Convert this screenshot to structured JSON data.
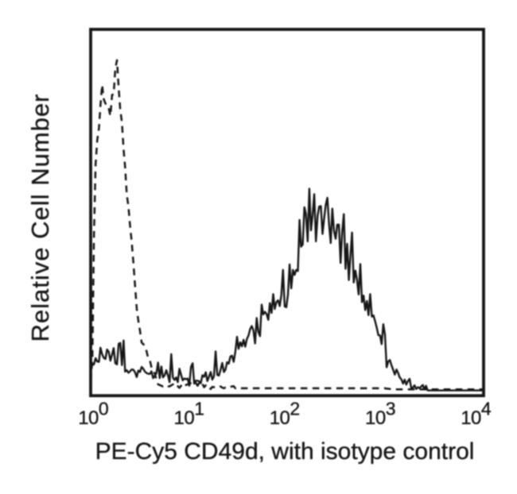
{
  "figure": {
    "background": "#ffffff",
    "ink": "#161616"
  },
  "chart_data": {
    "type": "line",
    "subtype": "flow-cytometry-histogram",
    "title": "",
    "xlabel": "PE-Cy5 CD49d, with isotype control",
    "ylabel": "Relative Cell Number",
    "x_scale": "log10",
    "x_range_log10": [
      0,
      4
    ],
    "ylim": [
      0,
      1
    ],
    "grid": false,
    "legend": "none",
    "x_ticks": [
      {
        "base": "10",
        "exp": "0"
      },
      {
        "base": "10",
        "exp": "1"
      },
      {
        "base": "10",
        "exp": "2"
      },
      {
        "base": "10",
        "exp": "3"
      },
      {
        "base": "10",
        "exp": "4"
      }
    ],
    "x_log10": [
      0.0,
      0.017,
      0.033,
      0.05,
      0.067,
      0.084,
      0.1,
      0.117,
      0.134,
      0.151,
      0.167,
      0.184,
      0.201,
      0.218,
      0.234,
      0.251,
      0.268,
      0.285,
      0.301,
      0.318,
      0.335,
      0.351,
      0.368,
      0.385,
      0.402,
      0.418,
      0.435,
      0.452,
      0.469,
      0.485,
      0.502,
      0.519,
      0.536,
      0.552,
      0.569,
      0.586,
      0.603,
      0.619,
      0.636,
      0.653,
      0.669,
      0.686,
      0.703,
      0.72,
      0.736,
      0.753,
      0.77,
      0.787,
      0.803,
      0.82,
      0.837,
      0.854,
      0.87,
      0.887,
      0.904,
      0.921,
      0.937,
      0.954,
      0.971,
      0.987,
      1.004,
      1.021,
      1.038,
      1.054,
      1.071,
      1.088,
      1.105,
      1.121,
      1.138,
      1.155,
      1.172,
      1.188,
      1.205,
      1.222,
      1.238,
      1.255,
      1.272,
      1.289,
      1.305,
      1.322,
      1.339,
      1.356,
      1.372,
      1.389,
      1.406,
      1.423,
      1.439,
      1.456,
      1.473,
      1.49,
      1.506,
      1.523,
      1.54,
      1.556,
      1.573,
      1.59,
      1.607,
      1.623,
      1.64,
      1.657,
      1.674,
      1.69,
      1.707,
      1.724,
      1.741,
      1.757,
      1.774,
      1.791,
      1.808,
      1.824,
      1.841,
      1.858,
      1.874,
      1.891,
      1.908,
      1.925,
      1.941,
      1.958,
      1.975,
      1.992,
      2.008,
      2.025,
      2.042,
      2.059,
      2.075,
      2.092,
      2.109,
      2.126,
      2.142,
      2.159,
      2.176,
      2.192,
      2.209,
      2.226,
      2.243,
      2.259,
      2.276,
      2.293,
      2.31,
      2.326,
      2.343,
      2.36,
      2.377,
      2.393,
      2.41,
      2.427,
      2.444,
      2.46,
      2.477,
      2.494,
      2.51,
      2.527,
      2.544,
      2.561,
      2.577,
      2.594,
      2.611,
      2.628,
      2.644,
      2.661,
      2.678,
      2.695,
      2.711,
      2.728,
      2.745,
      2.762,
      2.778,
      2.795,
      2.812,
      2.828,
      2.845,
      2.862,
      2.879,
      2.895,
      2.912,
      2.929,
      2.946,
      2.962,
      2.979,
      2.996,
      3.013,
      3.029,
      3.046,
      3.063,
      3.079,
      3.096,
      3.113,
      3.13,
      3.146,
      3.163,
      3.18,
      3.197,
      3.213,
      3.23,
      3.247,
      3.264,
      3.28,
      3.297,
      3.314,
      3.331,
      3.347,
      3.364,
      3.381,
      3.397,
      3.414,
      3.431,
      3.448,
      3.464,
      3.481,
      3.498,
      3.515,
      3.531,
      3.548,
      3.565,
      3.582,
      3.598,
      3.615,
      3.632,
      3.649,
      3.665,
      3.682,
      3.699,
      3.715,
      3.732,
      3.749,
      3.766,
      3.782,
      3.799,
      3.816,
      3.833,
      3.849,
      3.866,
      3.883,
      3.9,
      3.916,
      3.933,
      3.95,
      3.967,
      3.983,
      4.0
    ],
    "series": [
      {
        "name": "PE-Cy5 CD49d",
        "line_style": "solid",
        "draw_style": "linear",
        "color": "#161616",
        "y": [
          0.062,
          0.074,
          0.075,
          0.092,
          0.083,
          0.082,
          0.121,
          0.103,
          0.093,
          0.09,
          0.116,
          0.11,
          0.085,
          0.102,
          0.12,
          0.078,
          0.075,
          0.132,
          0.134,
          0.073,
          0.141,
          0.055,
          0.059,
          0.052,
          0.056,
          0.061,
          0.06,
          0.053,
          0.04,
          0.058,
          0.054,
          0.068,
          0.063,
          0.055,
          0.051,
          0.049,
          0.049,
          0.056,
          0.037,
          0.044,
          0.05,
          0.08,
          0.037,
          0.069,
          0.039,
          0.045,
          0.059,
          0.044,
          0.026,
          0.103,
          0.038,
          0.032,
          0.039,
          0.026,
          0.063,
          0.046,
          0.031,
          0.036,
          0.034,
          0.036,
          0.016,
          0.068,
          0.078,
          0.022,
          0.03,
          0.03,
          0.028,
          0.023,
          0.045,
          0.041,
          0.053,
          0.029,
          0.041,
          0.054,
          0.033,
          0.042,
          0.111,
          0.046,
          0.044,
          0.06,
          0.079,
          0.054,
          0.06,
          0.081,
          0.077,
          0.097,
          0.099,
          0.082,
          0.11,
          0.151,
          0.118,
          0.136,
          0.125,
          0.143,
          0.124,
          0.145,
          0.155,
          0.172,
          0.181,
          0.169,
          0.133,
          0.203,
          0.165,
          0.153,
          0.24,
          0.213,
          0.22,
          0.214,
          0.198,
          0.244,
          0.217,
          0.269,
          0.228,
          0.247,
          0.252,
          0.236,
          0.266,
          0.336,
          0.235,
          0.233,
          0.267,
          0.351,
          0.285,
          0.336,
          0.322,
          0.336,
          0.333,
          0.474,
          0.4,
          0.406,
          0.509,
          0.49,
          0.415,
          0.56,
          0.445,
          0.487,
          0.545,
          0.415,
          0.485,
          0.511,
          0.512,
          0.435,
          0.479,
          0.515,
          0.535,
          0.462,
          0.41,
          0.505,
          0.444,
          0.422,
          0.461,
          0.461,
          0.355,
          0.443,
          0.49,
          0.339,
          0.408,
          0.308,
          0.372,
          0.439,
          0.301,
          0.334,
          0.309,
          0.268,
          0.352,
          0.247,
          0.265,
          0.225,
          0.25,
          0.211,
          0.269,
          0.207,
          0.21,
          0.195,
          0.177,
          0.156,
          0.155,
          0.131,
          0.186,
          0.157,
          0.067,
          0.083,
          0.087,
          0.072,
          0.06,
          0.047,
          0.061,
          0.051,
          0.039,
          0.034,
          0.022,
          0.033,
          0.019,
          0.029,
          0.035,
          0.009,
          0.011,
          0.017,
          0.007,
          0.012,
          0.009,
          0.014,
          0.018,
          0.006,
          0.016,
          0.003,
          0.003,
          0.003,
          0.003,
          0.003,
          0.003,
          0.003,
          0.003,
          0.003,
          0.003,
          0.003,
          0.003,
          0.003,
          0.003,
          0.003,
          0.003,
          0.003,
          0.003,
          0.003,
          0.003,
          0.003,
          0.003,
          0.003,
          0.003,
          0.003,
          0.003,
          0.003,
          0.003,
          0.003,
          0.003,
          0.003,
          0.003,
          0.003,
          0.003,
          0.003
        ]
      },
      {
        "name": "Isotype control",
        "line_style": "dashed",
        "draw_style": "linear",
        "color": "#161616",
        "y": [
          0.03,
          0.087,
          0.428,
          0.628,
          0.695,
          0.727,
          0.79,
          0.847,
          0.807,
          0.795,
          0.794,
          0.782,
          0.761,
          0.819,
          0.821,
          0.892,
          0.915,
          0.838,
          0.778,
          0.743,
          0.668,
          0.62,
          0.543,
          0.511,
          0.456,
          0.413,
          0.356,
          0.292,
          0.23,
          0.196,
          0.168,
          0.135,
          0.131,
          0.125,
          0.111,
          0.091,
          0.086,
          0.067,
          0.056,
          0.05,
          0.033,
          0.02,
          0.018,
          0.016,
          0.014,
          0.015,
          0.018,
          0.015,
          0.014,
          0.017,
          0.02,
          0.015,
          0.019,
          0.015,
          0.01,
          0.016,
          0.02,
          0.024,
          0.018,
          0.02,
          0.02,
          0.023,
          0.02,
          0.022,
          0.024,
          0.016,
          0.024,
          0.017,
          0.021,
          0.012,
          0.017,
          0.019,
          0.011,
          0.007,
          0.013,
          0.012,
          0.012,
          0.01,
          0.013,
          0.014,
          0.011,
          0.009,
          0.011,
          0.009,
          0.011,
          0.013,
          0.014,
          0.015,
          0.009,
          0.011,
          0.009,
          0.009,
          0.009,
          0.009,
          0.009,
          0.009,
          0.009,
          0.009,
          0.009,
          0.009,
          0.009,
          0.009,
          0.009,
          0.009,
          0.009,
          0.009,
          0.009,
          0.009,
          0.009,
          0.009,
          0.009,
          0.009,
          0.009,
          0.009,
          0.009,
          0.009,
          0.009,
          0.009,
          0.009,
          0.009,
          0.009,
          0.009,
          0.009,
          0.009,
          0.009,
          0.009,
          0.009,
          0.009,
          0.009,
          0.009,
          0.009,
          0.009,
          0.009,
          0.009,
          0.009,
          0.009,
          0.009,
          0.009,
          0.009,
          0.009,
          0.009,
          0.009,
          0.009,
          0.009,
          0.009,
          0.009,
          0.009,
          0.009,
          0.009,
          0.009,
          0.009,
          0.009,
          0.009,
          0.009,
          0.009,
          0.009,
          0.009,
          0.009,
          0.009,
          0.009,
          0.009,
          0.009,
          0.009,
          0.009,
          0.009,
          0.009,
          0.009,
          0.009,
          0.009,
          0.009,
          0.009,
          0.009,
          0.009,
          0.009,
          0.009,
          0.009,
          0.009,
          0.009,
          0.009,
          0.009,
          0.008,
          0.008,
          0.007,
          0.007,
          0.007,
          0.006,
          0.006,
          0.006,
          0.006,
          0.006,
          0.006,
          0.006,
          0.006,
          0.006,
          0.006,
          0.006,
          0.006,
          0.006,
          0.006,
          0.006,
          0.006,
          0.006,
          0.006,
          0.006,
          0.006,
          0.006,
          0.006,
          0.006,
          0.006,
          0.006,
          0.006,
          0.006,
          0.006,
          0.006,
          0.006,
          0.006,
          0.006,
          0.006,
          0.006,
          0.006,
          0.006,
          0.006,
          0.006,
          0.006,
          0.006,
          0.006,
          0.006,
          0.006,
          0.006,
          0.006,
          0.006,
          0.006,
          0.006,
          0.006,
          0.006,
          0.006,
          0.006,
          0.006,
          0.006,
          0.006
        ]
      }
    ]
  }
}
